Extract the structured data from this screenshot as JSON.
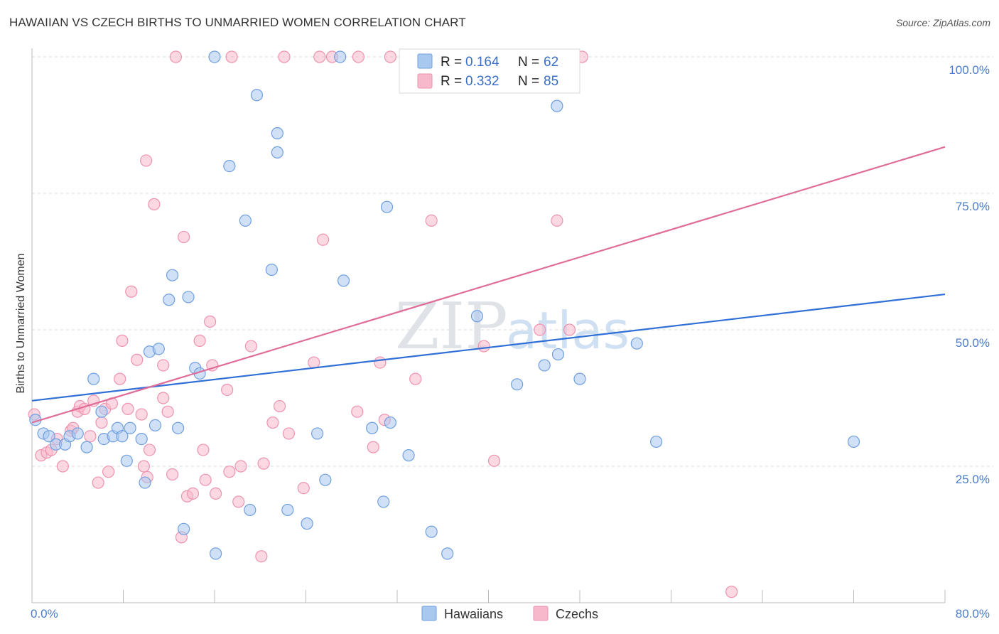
{
  "title": "HAWAIIAN VS CZECH BIRTHS TO UNMARRIED WOMEN CORRELATION CHART",
  "source": "Source: ZipAtlas.com",
  "watermark": {
    "zip": "ZIP",
    "atlas": "atlas"
  },
  "colors": {
    "hawaiians_fill": "#a9c8f0",
    "hawaiians_stroke": "#6f9fe0",
    "hawaiians_line": "#2f6fd6",
    "czechs_fill": "#f7b8cb",
    "czechs_stroke": "#ee93b0",
    "czechs_line": "#e06c98",
    "grid": "#d9d9d9",
    "tick_label": "#4a7cc9"
  },
  "legend": {
    "rows": [
      {
        "r_label": "R = ",
        "r_value": "0.164",
        "n_label": "N = ",
        "n_value": "62"
      },
      {
        "r_label": "R = ",
        "r_value": "0.332",
        "n_label": "N = ",
        "n_value": "85"
      }
    ]
  },
  "chart_data": {
    "type": "scatter",
    "title": "HAWAIIAN VS CZECH BIRTHS TO UNMARRIED WOMEN CORRELATION CHART",
    "xlabel": "",
    "ylabel": "Births to Unmarried Women",
    "xlim": [
      0,
      80
    ],
    "ylim": [
      0,
      100
    ],
    "x_tick_labels": [
      "0.0%",
      "80.0%"
    ],
    "y_tick_labels": [
      "25.0%",
      "50.0%",
      "75.0%",
      "100.0%"
    ],
    "y_ticks": [
      25,
      50,
      75,
      100
    ],
    "x_ticks": [
      0,
      8,
      16,
      24,
      32,
      40,
      48,
      56,
      64,
      72,
      80
    ],
    "grid": true,
    "legend_position": "top-center",
    "series": [
      {
        "name": "Hawaiians",
        "trend": [
          [
            0,
            37.0
          ],
          [
            80,
            56.5
          ]
        ],
        "points": [
          [
            0.3,
            33.5
          ],
          [
            1.0,
            31.0
          ],
          [
            1.5,
            30.5
          ],
          [
            2.1,
            29.0
          ],
          [
            2.9,
            29.0
          ],
          [
            3.3,
            30.5
          ],
          [
            4.0,
            31.0
          ],
          [
            4.8,
            28.5
          ],
          [
            5.4,
            41.0
          ],
          [
            6.1,
            35.0
          ],
          [
            6.3,
            30.0
          ],
          [
            7.1,
            30.5
          ],
          [
            7.5,
            32.0
          ],
          [
            7.9,
            30.5
          ],
          [
            8.3,
            26.0
          ],
          [
            8.6,
            32.0
          ],
          [
            9.6,
            30.0
          ],
          [
            9.9,
            22.0
          ],
          [
            10.3,
            46.0
          ],
          [
            10.8,
            32.5
          ],
          [
            11.1,
            46.5
          ],
          [
            12.0,
            55.5
          ],
          [
            12.3,
            60.0
          ],
          [
            12.8,
            32.0
          ],
          [
            13.3,
            13.5
          ],
          [
            13.7,
            56.0
          ],
          [
            14.3,
            43.0
          ],
          [
            14.7,
            42.0
          ],
          [
            16.0,
            100.0
          ],
          [
            16.1,
            9.0
          ],
          [
            17.3,
            80.0
          ],
          [
            18.7,
            70.0
          ],
          [
            19.1,
            17.0
          ],
          [
            19.7,
            93.0
          ],
          [
            21.0,
            61.0
          ],
          [
            21.5,
            86.0
          ],
          [
            21.5,
            82.5
          ],
          [
            22.4,
            17.0
          ],
          [
            24.1,
            14.5
          ],
          [
            25.0,
            31.0
          ],
          [
            25.7,
            22.5
          ],
          [
            27.0,
            100.0
          ],
          [
            27.3,
            59.0
          ],
          [
            29.8,
            32.0
          ],
          [
            30.8,
            18.5
          ],
          [
            31.1,
            72.5
          ],
          [
            31.4,
            33.0
          ],
          [
            33.0,
            27.0
          ],
          [
            35.0,
            13.0
          ],
          [
            36.4,
            9.0
          ],
          [
            39.0,
            52.5
          ],
          [
            42.5,
            40.0
          ],
          [
            44.9,
            43.5
          ],
          [
            46.1,
            45.5
          ],
          [
            46.0,
            91.0
          ],
          [
            48.0,
            41.0
          ],
          [
            53.0,
            47.5
          ],
          [
            54.7,
            29.5
          ],
          [
            72.0,
            29.5
          ]
        ]
      },
      {
        "name": "Czechs",
        "trend": [
          [
            0,
            33.0
          ],
          [
            80,
            83.5
          ]
        ],
        "points": [
          [
            0.2,
            34.5
          ],
          [
            0.8,
            27.0
          ],
          [
            1.3,
            27.5
          ],
          [
            1.7,
            28.0
          ],
          [
            2.2,
            30.0
          ],
          [
            2.7,
            25.0
          ],
          [
            3.4,
            31.5
          ],
          [
            3.6,
            32.0
          ],
          [
            4.0,
            35.0
          ],
          [
            4.2,
            36.0
          ],
          [
            4.6,
            35.5
          ],
          [
            5.1,
            30.5
          ],
          [
            5.4,
            37.0
          ],
          [
            5.8,
            22.0
          ],
          [
            6.1,
            33.0
          ],
          [
            6.4,
            35.5
          ],
          [
            6.7,
            24.0
          ],
          [
            7.0,
            36.5
          ],
          [
            7.7,
            41.0
          ],
          [
            7.9,
            48.0
          ],
          [
            8.4,
            35.5
          ],
          [
            8.7,
            57.0
          ],
          [
            9.2,
            44.5
          ],
          [
            9.6,
            34.5
          ],
          [
            9.8,
            25.0
          ],
          [
            10.1,
            23.0
          ],
          [
            10.3,
            28.0
          ],
          [
            10.0,
            81.0
          ],
          [
            10.7,
            73.0
          ],
          [
            11.5,
            43.5
          ],
          [
            11.5,
            37.5
          ],
          [
            11.9,
            35.0
          ],
          [
            12.3,
            23.5
          ],
          [
            12.6,
            100.0
          ],
          [
            13.1,
            12.0
          ],
          [
            13.3,
            67.0
          ],
          [
            13.6,
            19.5
          ],
          [
            14.1,
            20.0
          ],
          [
            14.7,
            48.0
          ],
          [
            15.0,
            28.0
          ],
          [
            15.2,
            22.5
          ],
          [
            15.6,
            51.5
          ],
          [
            15.8,
            43.5
          ],
          [
            16.1,
            20.0
          ],
          [
            17.1,
            39.0
          ],
          [
            17.3,
            24.0
          ],
          [
            17.5,
            100.0
          ],
          [
            18.1,
            18.5
          ],
          [
            18.3,
            25.0
          ],
          [
            19.2,
            47.0
          ],
          [
            20.1,
            8.5
          ],
          [
            20.3,
            25.5
          ],
          [
            21.1,
            33.0
          ],
          [
            21.7,
            36.0
          ],
          [
            22.1,
            100.0
          ],
          [
            22.5,
            31.0
          ],
          [
            23.8,
            21.0
          ],
          [
            24.7,
            44.0
          ],
          [
            25.2,
            100.0
          ],
          [
            25.5,
            66.5
          ],
          [
            26.3,
            100.0
          ],
          [
            28.6,
            100.0
          ],
          [
            28.5,
            35.0
          ],
          [
            29.9,
            28.5
          ],
          [
            30.5,
            44.0
          ],
          [
            30.9,
            33.5
          ],
          [
            31.4,
            100.0
          ],
          [
            32.8,
            100.0
          ],
          [
            33.6,
            41.0
          ],
          [
            35.0,
            70.0
          ],
          [
            39.6,
            47.0
          ],
          [
            40.5,
            26.0
          ],
          [
            44.5,
            50.0
          ],
          [
            46.0,
            70.0
          ],
          [
            47.1,
            50.0
          ],
          [
            48.2,
            100.0
          ],
          [
            61.3,
            2.0
          ]
        ]
      }
    ]
  },
  "bottom_legend": [
    "Hawaiians",
    "Czechs"
  ]
}
